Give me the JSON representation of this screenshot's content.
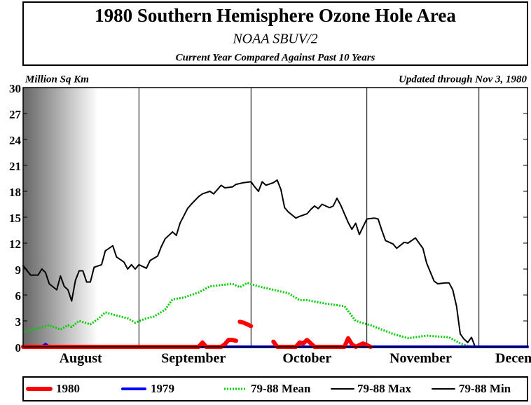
{
  "chart_data": {
    "type": "line",
    "title": "1980 Southern Hemisphere Ozone Hole Area",
    "subtitle": "NOAA SBUV/2",
    "caption": "Current Year Compared Against Past 10 Years",
    "ylabel": "Million Sq Km",
    "annotation": "Updated through Nov 3, 1980",
    "xlim": [
      0,
      135
    ],
    "xticks": [
      31,
      61,
      92,
      122
    ],
    "month_labels": [
      {
        "value": 15.4,
        "label": "August"
      },
      {
        "value": 45.6,
        "label": "September"
      },
      {
        "value": 76,
        "label": "October"
      },
      {
        "value": 106.4,
        "label": "November"
      },
      {
        "value": 134.5,
        "label": "December"
      }
    ],
    "ylim": [
      0,
      30
    ],
    "yticks": [
      0,
      3,
      6,
      9,
      12,
      15,
      18,
      21,
      24,
      27,
      30
    ],
    "grid": true,
    "series": [
      {
        "name": "79-88 Min",
        "color": "#000000",
        "line_style": "solid",
        "line_width": 2,
        "x": [
          0,
          135
        ],
        "values": [
          0,
          0
        ]
      },
      {
        "name": "79-88 Mean",
        "color": "#00cc00",
        "line_style": "dotted",
        "line_width": 3,
        "x": [
          0,
          7,
          10,
          12,
          13,
          15,
          18,
          20,
          22,
          26,
          28,
          30,
          33,
          35,
          38,
          40,
          43,
          47,
          50,
          56,
          58,
          60,
          63,
          67,
          71,
          74,
          76,
          81,
          86,
          89,
          93,
          99,
          103,
          108,
          114,
          117,
          119,
          121
        ],
        "values": [
          1.7,
          2.5,
          2.0,
          2.5,
          2.3,
          3.0,
          2.6,
          3.2,
          4.0,
          3.5,
          3.3,
          2.8,
          3.3,
          3.5,
          4.3,
          5.5,
          5.7,
          6.3,
          7.0,
          7.3,
          6.9,
          7.4,
          7.0,
          6.6,
          6.2,
          5.4,
          5.4,
          5.0,
          4.7,
          3.0,
          2.5,
          1.5,
          1.0,
          1.3,
          1.1,
          0.4,
          0.1,
          0
        ]
      },
      {
        "name": "79-88 Max",
        "color": "#000000",
        "line_style": "solid",
        "line_width": 2,
        "x": [
          0,
          2,
          4,
          5,
          6,
          7,
          9,
          10,
          11,
          12,
          13,
          14,
          15,
          16,
          17,
          18,
          19,
          21,
          22,
          24,
          25,
          27,
          28,
          29,
          30,
          31,
          33,
          34,
          36,
          37,
          38,
          40,
          41,
          42,
          44,
          45,
          47,
          48,
          50,
          51,
          53,
          54,
          56,
          57,
          59,
          61,
          62,
          63,
          64,
          65,
          67,
          68,
          69,
          70,
          71,
          73,
          74,
          76,
          77,
          78,
          79,
          80,
          82,
          83,
          84,
          85,
          87,
          88,
          89,
          90,
          91,
          92,
          94,
          95,
          96,
          97,
          99,
          100,
          102,
          103,
          105,
          106,
          107,
          108,
          110,
          111,
          113,
          114,
          115,
          116,
          117,
          118,
          119,
          120,
          121
        ],
        "values": [
          9.4,
          8.3,
          8.3,
          9.0,
          8.6,
          7.3,
          6.6,
          8.2,
          7.0,
          6.6,
          5.3,
          7.7,
          8.8,
          8.8,
          7.5,
          7.5,
          9.2,
          9.5,
          11.1,
          11.7,
          10.4,
          9.8,
          9.0,
          9.5,
          9.0,
          9.5,
          9.1,
          10.0,
          10.5,
          11.6,
          12.5,
          13.3,
          12.9,
          14.3,
          16.0,
          16.5,
          17.4,
          17.7,
          18.0,
          17.7,
          18.7,
          18.4,
          18.5,
          18.8,
          19.0,
          19.1,
          18.5,
          18.0,
          19.1,
          18.7,
          19.0,
          19.3,
          18.2,
          16.1,
          15.6,
          14.9,
          15.1,
          15.4,
          15.9,
          16.3,
          16.0,
          16.5,
          16.1,
          16.3,
          17.2,
          16.4,
          14.4,
          13.6,
          14.3,
          13.0,
          13.9,
          14.8,
          14.9,
          14.8,
          13.5,
          12.3,
          11.9,
          11.4,
          12.1,
          12.0,
          12.6,
          12.0,
          11.4,
          9.7,
          7.6,
          7.3,
          7.4,
          7.4,
          6.6,
          4.7,
          1.5,
          0.9,
          0.5,
          1.1,
          0
        ]
      },
      {
        "name": "1979",
        "color": "#0000ff",
        "line_style": "solid",
        "line_width": 4,
        "x": [
          0,
          5,
          6,
          7,
          135
        ],
        "values": [
          0,
          0,
          0.3,
          0,
          0
        ]
      },
      {
        "name": "1980",
        "color": "#ff0000",
        "line_style": "solid",
        "line_width": 6,
        "x": [
          0,
          47,
          48,
          49,
          53,
          54,
          55,
          56,
          57,
          57.5,
          58,
          59,
          60,
          61,
          62,
          67,
          68,
          73,
          74,
          75,
          76,
          77,
          78,
          86,
          87,
          88,
          89,
          91,
          92,
          93
        ],
        "values": [
          0,
          0,
          0.5,
          0,
          0,
          0.3,
          0.8,
          0.8,
          0.7,
          null,
          2.9,
          2.8,
          2.6,
          2.4,
          null,
          0.6,
          0,
          0,
          0.5,
          0.4,
          0.8,
          0.4,
          0,
          0,
          1.0,
          0.3,
          0,
          0.4,
          0.2,
          0
        ]
      }
    ],
    "legend_order": [
      4,
      3,
      1,
      2,
      0
    ]
  }
}
